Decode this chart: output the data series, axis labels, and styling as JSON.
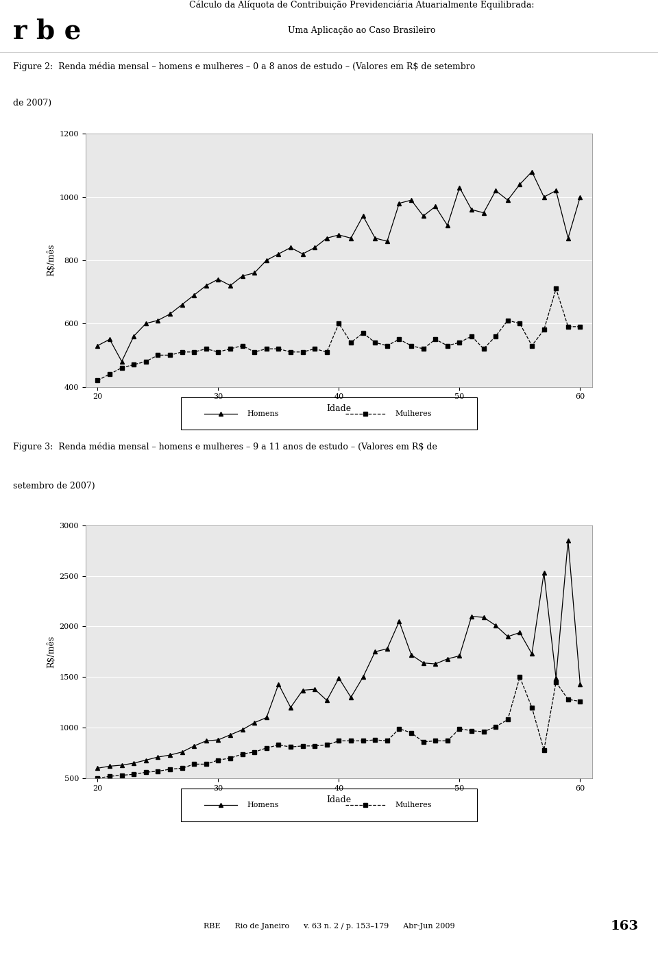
{
  "header_left": "r b e",
  "header_right_line1": "Cálculo da Alíquota de Contribuição Previdenciária Atuarialmente Equilibrada:",
  "header_right_line2": "Uma Aplicação ao Caso Brasileiro",
  "fig2_caption_line1": "Figure 2:  Renda média mensal – homens e mulheres – 0 a 8 anos de estudo – (Valores em R$ de setembro",
  "fig2_caption_line2": "de 2007)",
  "fig3_caption_line1": "Figure 3:  Renda média mensal – homens e mulheres – 9 a 11 anos de estudo – (Valores em R$ de",
  "fig3_caption_line2": "setembro de 2007)",
  "footer": "RBE      Rio de Janeiro      v. 63 n. 2 / p. 153–179      Abr-Jun 2009",
  "footer_page": "163",
  "age": [
    20,
    21,
    22,
    23,
    24,
    25,
    26,
    27,
    28,
    29,
    30,
    31,
    32,
    33,
    34,
    35,
    36,
    37,
    38,
    39,
    40,
    41,
    42,
    43,
    44,
    45,
    46,
    47,
    48,
    49,
    50,
    51,
    52,
    53,
    54,
    55,
    56,
    57,
    58,
    59,
    60
  ],
  "fig2_homens": [
    530,
    550,
    480,
    560,
    600,
    610,
    630,
    660,
    690,
    720,
    740,
    720,
    750,
    760,
    800,
    820,
    840,
    820,
    840,
    870,
    880,
    870,
    940,
    870,
    860,
    980,
    990,
    940,
    970,
    910,
    1030,
    960,
    950,
    1020,
    990,
    1040,
    1080,
    1000,
    1020,
    870,
    1000
  ],
  "fig2_mulheres": [
    420,
    440,
    460,
    470,
    480,
    500,
    500,
    510,
    510,
    520,
    510,
    520,
    530,
    510,
    520,
    520,
    510,
    510,
    520,
    510,
    600,
    540,
    570,
    540,
    530,
    550,
    530,
    520,
    550,
    530,
    540,
    560,
    520,
    560,
    610,
    600,
    530,
    580,
    710,
    590,
    590
  ],
  "fig3_homens": [
    600,
    620,
    630,
    650,
    680,
    710,
    730,
    760,
    820,
    870,
    880,
    930,
    980,
    1050,
    1100,
    1430,
    1200,
    1370,
    1380,
    1270,
    1490,
    1300,
    1500,
    1750,
    1780,
    2050,
    1720,
    1640,
    1630,
    1680,
    1710,
    2100,
    2090,
    2010,
    1900,
    1940,
    1730,
    2530,
    1490,
    2850,
    1430
  ],
  "fig3_mulheres": [
    500,
    520,
    530,
    540,
    560,
    570,
    590,
    600,
    640,
    640,
    680,
    700,
    740,
    760,
    800,
    830,
    810,
    820,
    820,
    830,
    870,
    870,
    870,
    880,
    870,
    990,
    950,
    860,
    870,
    870,
    990,
    970,
    960,
    1010,
    1080,
    1500,
    1200,
    780,
    1450,
    1280,
    1260
  ],
  "ylabel": "R$/mês",
  "xlabel": "Idade",
  "legend_homens": "Homens",
  "legend_mulheres": "Mulheres",
  "fig2_ylim": [
    400,
    1200
  ],
  "fig2_yticks": [
    400,
    600,
    800,
    1000,
    1200
  ],
  "fig2_xlim": [
    19,
    61
  ],
  "fig2_xticks": [
    20,
    30,
    40,
    50,
    60
  ],
  "fig3_ylim": [
    500,
    3000
  ],
  "fig3_yticks": [
    500,
    1000,
    1500,
    2000,
    2500,
    3000
  ],
  "fig3_xlim": [
    19,
    61
  ],
  "fig3_xticks": [
    20,
    30,
    40,
    50,
    60
  ],
  "bg_color": "#ffffff",
  "plot_bg_color": "#e8e8e8",
  "line_color": "#000000",
  "grid_color": "#ffffff"
}
